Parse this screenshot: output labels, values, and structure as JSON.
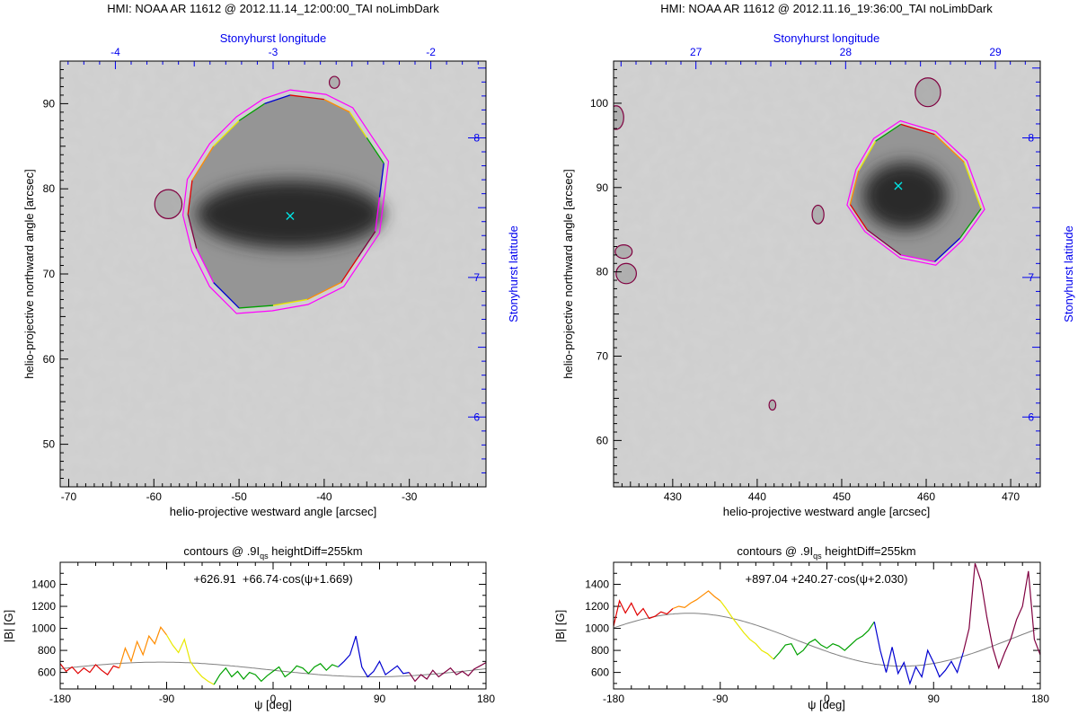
{
  "chart_data": [
    {
      "type": "heatmap",
      "title": "HMI: NOAA AR 11612 @ 2012.11.14_12:00:00_TAI noLimbDark",
      "xlabel": "helio-projective westward angle [arcsec]",
      "ylabel": "helio-projective northward angle [arcsec]",
      "top_axis_label": "Stonyhurst longitude",
      "right_axis_label": "Stonyhurst latitude",
      "xlim": [
        -71,
        -21
      ],
      "ylim": [
        45,
        95
      ],
      "xticks": [
        -70,
        -60,
        -50,
        -40,
        -30
      ],
      "yticks": [
        50,
        60,
        70,
        80,
        90
      ],
      "top_ticks": [
        -4,
        -3,
        -2
      ],
      "top_lim": [
        -4.35,
        -1.65
      ],
      "right_ticks": [
        6,
        7,
        8
      ],
      "right_lim": [
        5.5,
        8.55
      ],
      "marker": {
        "x": -44,
        "y": 76.8,
        "symbol": "×",
        "color": "#00e5e5"
      },
      "umbra": {
        "cx": -44,
        "cy": 77,
        "rx": 11,
        "ry": 4
      },
      "contour_colors": [
        "#e00000",
        "#ff8c00",
        "#e8e800",
        "#00a000",
        "#0000d0",
        "#ff00ff",
        "#800040"
      ],
      "spot_outline": [
        [
          -44,
          91
        ],
        [
          -40,
          90.5
        ],
        [
          -37,
          89
        ],
        [
          -35,
          86
        ],
        [
          -33,
          83
        ],
        [
          -33.5,
          79
        ],
        [
          -34,
          75
        ],
        [
          -36,
          72
        ],
        [
          -38,
          69
        ],
        [
          -42,
          67
        ],
        [
          -46,
          66.3
        ],
        [
          -50,
          66
        ],
        [
          -53,
          69
        ],
        [
          -55,
          73
        ],
        [
          -56,
          77
        ],
        [
          -55.5,
          81
        ],
        [
          -53,
          85
        ],
        [
          -50,
          88
        ],
        [
          -47,
          90
        ]
      ],
      "small_contours": [
        [
          -58.3,
          78.2,
          1.6,
          1.7
        ],
        [
          -38.8,
          92.5,
          0.6,
          0.7
        ]
      ]
    },
    {
      "type": "heatmap",
      "title": "HMI: NOAA AR 11612 @ 2012.11.16_19:36:00_TAI noLimbDark",
      "xlabel": "helio-projective westward angle [arcsec]",
      "ylabel": "helio-projective northward angle [arcsec]",
      "top_axis_label": "Stonyhurst longitude",
      "right_axis_label": "Stonyhurst latitude",
      "xlim": [
        423,
        473.5
      ],
      "ylim": [
        54.5,
        105
      ],
      "xticks": [
        430,
        440,
        450,
        460,
        470
      ],
      "yticks": [
        60,
        70,
        80,
        90,
        100
      ],
      "top_ticks": [
        27,
        28,
        29
      ],
      "top_lim": [
        26.45,
        29.3
      ],
      "right_ticks": [
        6,
        7,
        8
      ],
      "right_lim": [
        5.5,
        8.55
      ],
      "marker": {
        "x": 456.7,
        "y": 90.2,
        "symbol": "×",
        "color": "#00e5e5"
      },
      "umbra": {
        "cx": 457.5,
        "cy": 89,
        "rx": 5,
        "ry": 4
      },
      "contour_colors": [
        "#e00000",
        "#ff8c00",
        "#e8e800",
        "#00a000",
        "#0000d0",
        "#ff00ff",
        "#800040"
      ],
      "spot_outline": [
        [
          457,
          97.5
        ],
        [
          461,
          96.3
        ],
        [
          464.5,
          93
        ],
        [
          466.5,
          87.5
        ],
        [
          464,
          84
        ],
        [
          461,
          81.2
        ],
        [
          457,
          82
        ],
        [
          453,
          85
        ],
        [
          451,
          88
        ],
        [
          452,
          92
        ],
        [
          454,
          95.5
        ]
      ],
      "small_contours": [
        [
          424.5,
          79.8,
          1.2,
          1.2
        ],
        [
          424.2,
          82.4,
          1.0,
          0.8
        ],
        [
          423.3,
          98.3,
          0.9,
          1.4
        ],
        [
          447.2,
          86.8,
          0.7,
          1.1
        ],
        [
          441.8,
          64.2,
          0.4,
          0.6
        ],
        [
          460.2,
          101.3,
          1.5,
          1.7
        ]
      ]
    },
    {
      "type": "line",
      "title": "contours @ .9I",
      "title_sub": "qs",
      "title_suffix": " heightDiff=255km",
      "fit_label": "+626.91  +66.74·cos(ψ+1.669)",
      "xlabel": "ψ [deg]",
      "ylabel": "|B| [G]",
      "xlim": [
        -180,
        180
      ],
      "ylim": [
        450,
        1600
      ],
      "xticks": [
        -180,
        -90,
        0,
        90,
        180
      ],
      "yticks": [
        600,
        800,
        1000,
        1200,
        1400
      ],
      "fit": {
        "a": 626.91,
        "b": 66.74,
        "phase": 1.669
      },
      "series": [
        {
          "color": "#e00000",
          "x": [
            -180,
            -175,
            -170,
            -165,
            -160,
            -155,
            -150,
            -145,
            -140,
            -135,
            -130
          ],
          "y": [
            680,
            610,
            650,
            590,
            640,
            600,
            670,
            620,
            580,
            660,
            640
          ]
        },
        {
          "color": "#ff8c00",
          "x": [
            -130,
            -125,
            -120,
            -115,
            -110,
            -105,
            -100,
            -95,
            -90
          ],
          "y": [
            640,
            820,
            700,
            880,
            760,
            930,
            860,
            1010,
            940
          ]
        },
        {
          "color": "#e8e800",
          "x": [
            -90,
            -85,
            -80,
            -75,
            -70,
            -65,
            -60,
            -55,
            -50
          ],
          "y": [
            940,
            850,
            780,
            900,
            700,
            620,
            560,
            520,
            490
          ]
        },
        {
          "color": "#00a000",
          "x": [
            -50,
            -45,
            -40,
            -35,
            -30,
            -25,
            -20,
            -15,
            -10,
            -5,
            0,
            5,
            10,
            15,
            20,
            25,
            30,
            35,
            40,
            45,
            50,
            55
          ],
          "y": [
            490,
            580,
            640,
            560,
            610,
            540,
            600,
            580,
            520,
            570,
            610,
            650,
            560,
            600,
            660,
            640,
            590,
            650,
            680,
            620,
            670,
            650
          ]
        },
        {
          "color": "#0000d0",
          "x": [
            55,
            60,
            65,
            70,
            75,
            80,
            85,
            90,
            95,
            100,
            105,
            110,
            115
          ],
          "y": [
            650,
            700,
            760,
            930,
            650,
            560,
            610,
            700,
            580,
            620,
            660,
            590,
            600
          ]
        },
        {
          "color": "#800040",
          "x": [
            115,
            120,
            125,
            130,
            135,
            140,
            145,
            150,
            155,
            160,
            165,
            170,
            175,
            180
          ],
          "y": [
            600,
            520,
            580,
            540,
            620,
            560,
            600,
            640,
            580,
            610,
            570,
            630,
            660,
            690
          ]
        }
      ]
    },
    {
      "type": "line",
      "title": "contours @ .9I",
      "title_sub": "qs",
      "title_suffix": " heightDiff=255km",
      "fit_label": "+897.04 +240.27·cos(ψ+2.030)",
      "xlabel": "ψ [deg]",
      "ylabel": "|B| [G]",
      "xlim": [
        -180,
        180
      ],
      "ylim": [
        450,
        1600
      ],
      "xticks": [
        -180,
        -90,
        0,
        90,
        180
      ],
      "yticks": [
        600,
        800,
        1000,
        1200,
        1400
      ],
      "fit": {
        "a": 897.04,
        "b": 240.27,
        "phase": 2.03
      },
      "series": [
        {
          "color": "#e00000",
          "x": [
            -180,
            -175,
            -170,
            -165,
            -160,
            -155,
            -150,
            -145,
            -140,
            -135,
            -130
          ],
          "y": [
            1020,
            1250,
            1140,
            1230,
            1120,
            1180,
            1090,
            1110,
            1150,
            1130,
            1180
          ]
        },
        {
          "color": "#ff8c00",
          "x": [
            -130,
            -125,
            -120,
            -115,
            -110,
            -105,
            -100,
            -95,
            -90
          ],
          "y": [
            1180,
            1200,
            1190,
            1230,
            1260,
            1300,
            1340,
            1290,
            1250
          ]
        },
        {
          "color": "#e8e800",
          "x": [
            -90,
            -85,
            -80,
            -75,
            -70,
            -65,
            -60,
            -55,
            -50,
            -45
          ],
          "y": [
            1250,
            1180,
            1100,
            1030,
            960,
            900,
            860,
            800,
            770,
            720
          ]
        },
        {
          "color": "#00a000",
          "x": [
            -45,
            -40,
            -35,
            -30,
            -25,
            -20,
            -15,
            -10,
            -5,
            0,
            5,
            10,
            15,
            20,
            25,
            30,
            35,
            40
          ],
          "y": [
            720,
            780,
            850,
            860,
            760,
            800,
            870,
            900,
            850,
            820,
            860,
            840,
            800,
            850,
            900,
            930,
            980,
            1060
          ]
        },
        {
          "color": "#0000d0",
          "x": [
            40,
            45,
            50,
            55,
            60,
            65,
            70,
            75,
            80,
            85,
            90,
            95,
            100,
            105,
            110,
            115
          ],
          "y": [
            1060,
            800,
            600,
            830,
            590,
            690,
            500,
            650,
            560,
            800,
            690,
            560,
            620,
            700,
            600,
            780
          ]
        },
        {
          "color": "#800040",
          "x": [
            115,
            120,
            125,
            130,
            135,
            140,
            145,
            150,
            155,
            160,
            165,
            170,
            175,
            180
          ],
          "y": [
            780,
            1000,
            1590,
            1430,
            1100,
            820,
            640,
            780,
            900,
            1080,
            1200,
            1520,
            900,
            760
          ]
        }
      ]
    }
  ]
}
